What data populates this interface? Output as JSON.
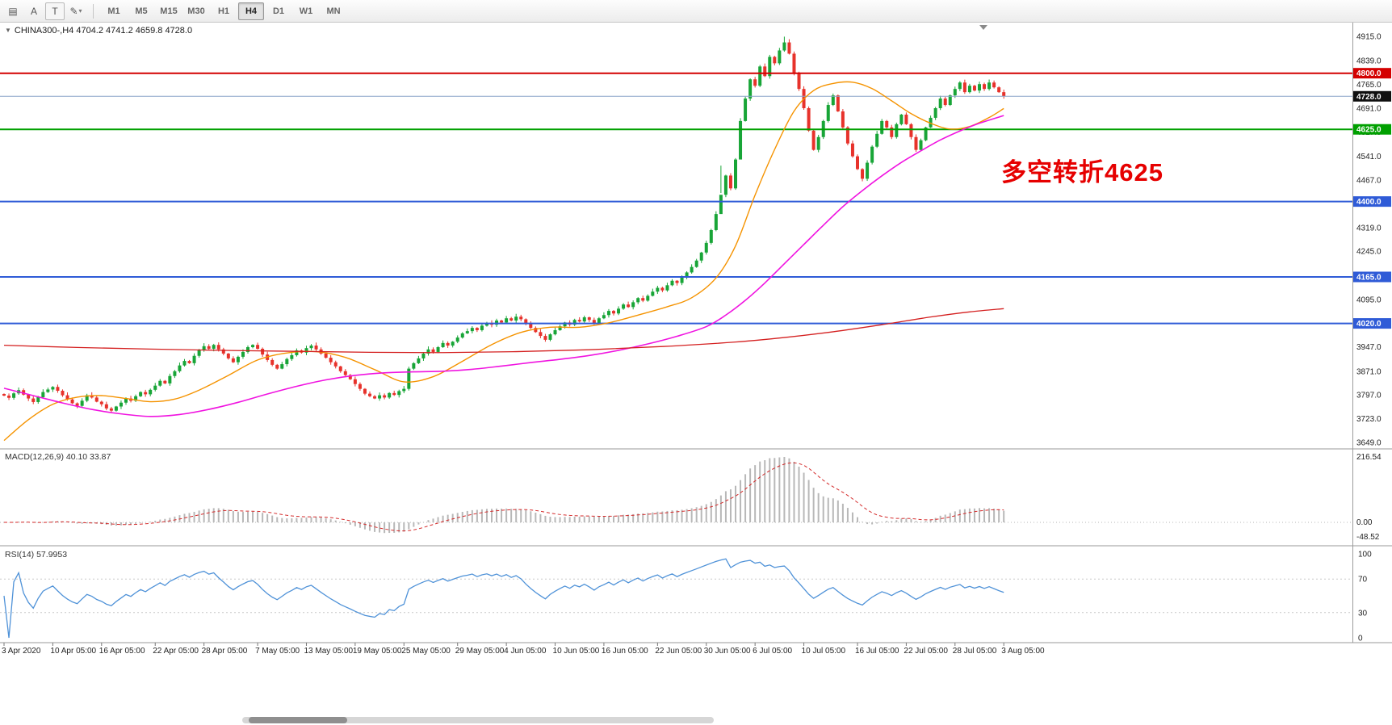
{
  "toolbar": {
    "icons": [
      {
        "name": "chart-grid-icon",
        "glyph": "▤",
        "boxed": false,
        "dropdown": false
      },
      {
        "name": "cursor-tool-icon",
        "glyph": "A",
        "boxed": false,
        "dropdown": false
      },
      {
        "name": "text-tool-icon",
        "glyph": "T",
        "boxed": true,
        "dropdown": false
      },
      {
        "name": "draw-tool-icon",
        "glyph": "✎",
        "boxed": false,
        "dropdown": true
      }
    ],
    "timeframes": [
      "M1",
      "M5",
      "M15",
      "M30",
      "H1",
      "H4",
      "D1",
      "W1",
      "MN"
    ],
    "selected_timeframe": "H4"
  },
  "chart": {
    "collapse_arrow": "▼",
    "symbol_title": "CHINA300-,H4  4704.2 4741.2 4659.8 4728.0",
    "annotation_text": "多空转折4625",
    "annotation_color": "#e60000"
  },
  "chart_data": {
    "type": "candlestick",
    "symbol": "CHINA300-",
    "timeframe": "H4",
    "ohlc_current": {
      "open": 4704.2,
      "high": 4741.2,
      "low": 4659.8,
      "close": 4728.0
    },
    "first_open": 3800,
    "closes": [
      3795,
      3788,
      3802,
      3812,
      3798,
      3786,
      3775,
      3790,
      3806,
      3814,
      3822,
      3810,
      3796,
      3783,
      3771,
      3763,
      3779,
      3796,
      3789,
      3776,
      3768,
      3755,
      3748,
      3761,
      3773,
      3786,
      3779,
      3793,
      3806,
      3799,
      3813,
      3826,
      3841,
      3833,
      3856,
      3871,
      3889,
      3903,
      3896,
      3919,
      3936,
      3949,
      3941,
      3953,
      3939,
      3926,
      3911,
      3899,
      3916,
      3931,
      3946,
      3953,
      3941,
      3923,
      3906,
      3891,
      3879,
      3893,
      3909,
      3921,
      3936,
      3929,
      3943,
      3951,
      3939,
      3926,
      3913,
      3899,
      3886,
      3871,
      3859,
      3846,
      3831,
      3816,
      3801,
      3793,
      3786,
      3796,
      3789,
      3803,
      3797,
      3809,
      3816,
      3879,
      3896,
      3911,
      3926,
      3939,
      3931,
      3946,
      3959,
      3951,
      3963,
      3976,
      3989,
      3996,
      4006,
      3999,
      4013,
      4021,
      4016,
      4029,
      4023,
      4036,
      4029,
      4041,
      4033,
      4019,
      4006,
      3993,
      3981,
      3969,
      3986,
      3999,
      4011,
      4023,
      4016,
      4031,
      4026,
      4039,
      4031,
      4021,
      4036,
      4046,
      4059,
      4051,
      4066,
      4079,
      4071,
      4086,
      4099,
      4091,
      4106,
      4119,
      4131,
      4123,
      4139,
      4153,
      4146,
      4163,
      4179,
      4196,
      4216,
      4241,
      4271,
      4311,
      4361,
      4421,
      4481,
      4441,
      4531,
      4651,
      4721,
      4781,
      4761,
      4821,
      4791,
      4851,
      4831,
      4871,
      4896,
      4861,
      4801,
      4751,
      4691,
      4621,
      4561,
      4601,
      4651,
      4701,
      4731,
      4681,
      4631,
      4581,
      4541,
      4501,
      4471,
      4521,
      4571,
      4611,
      4651,
      4631,
      4601,
      4641,
      4671,
      4641,
      4601,
      4561,
      4591,
      4631,
      4661,
      4691,
      4721,
      4701,
      4731,
      4751,
      4771,
      4741,
      4761,
      4746,
      4766,
      4751,
      4771,
      4756,
      4741,
      4728
    ],
    "high_low_overrides": {
      "147": {
        "low": 4512
      },
      "151": {
        "low": 4548
      },
      "160": {
        "high": 4914
      },
      "161": {
        "high": 4906
      }
    },
    "x_labels": [
      [
        0,
        "3 Apr 2020"
      ],
      [
        10,
        "10 Apr 05:00"
      ],
      [
        20,
        "16 Apr 05:00"
      ],
      [
        31,
        "22 Apr 05:00"
      ],
      [
        41,
        "28 Apr 05:00"
      ],
      [
        52,
        "7 May 05:00"
      ],
      [
        62,
        "13 May 05:00"
      ],
      [
        72,
        "19 May 05:00"
      ],
      [
        82,
        "25 May 05:00"
      ],
      [
        93,
        "29 May 05:00"
      ],
      [
        103,
        "4 Jun 05:00"
      ],
      [
        113,
        "10 Jun 05:00"
      ],
      [
        123,
        "16 Jun 05:00"
      ],
      [
        134,
        "22 Jun 05:00"
      ],
      [
        144,
        "30 Jun 05:00"
      ],
      [
        154,
        "6 Jul 05:00"
      ],
      [
        164,
        "10 Jul 05:00"
      ],
      [
        175,
        "16 Jul 05:00"
      ],
      [
        185,
        "22 Jul 05:00"
      ],
      [
        195,
        "28 Jul 05:00"
      ],
      [
        205,
        "3 Aug 05:00"
      ]
    ],
    "y_axis": {
      "min": 3649,
      "max": 4915,
      "labels": [
        "4915.0",
        "4839.0",
        "4765.0",
        "4691.0",
        "4617.0",
        "4541.0",
        "4467.0",
        "4393.0",
        "4319.0",
        "4245.0",
        "4171.0",
        "4095.0",
        "4021.0",
        "3947.0",
        "3871.0",
        "3797.0",
        "3723.0",
        "3649.0"
      ]
    },
    "levels": [
      {
        "price": 4800.0,
        "label": "4800.0",
        "color": "#d40000",
        "badge": "#d40000",
        "width": 2,
        "kind": "resistance"
      },
      {
        "price": 4728.0,
        "label": "4728.0",
        "color": "#8aa4c8",
        "badge": "#101010",
        "width": 1,
        "kind": "current-price"
      },
      {
        "price": 4625.0,
        "label": "4625.0",
        "color": "#00a000",
        "badge": "#00a000",
        "width": 2,
        "kind": "pivot"
      },
      {
        "price": 4400.0,
        "label": "4400.0",
        "color": "#2f5bd7",
        "badge": "#2f5bd7",
        "width": 2,
        "kind": "support"
      },
      {
        "price": 4165.0,
        "label": "4165.0",
        "color": "#2f5bd7",
        "badge": "#2f5bd7",
        "width": 2,
        "kind": "support"
      },
      {
        "price": 4020.0,
        "label": "4020.0",
        "color": "#2f5bd7",
        "badge": "#2f5bd7",
        "width": 2,
        "kind": "support"
      }
    ],
    "ma_lines": [
      {
        "name": "ma-fast",
        "color": "#f59300",
        "width": 1.4,
        "points": [
          [
            0,
            3655
          ],
          [
            5,
            3720
          ],
          [
            10,
            3768
          ],
          [
            15,
            3790
          ],
          [
            20,
            3795
          ],
          [
            25,
            3786
          ],
          [
            30,
            3776
          ],
          [
            35,
            3784
          ],
          [
            40,
            3812
          ],
          [
            46,
            3858
          ],
          [
            52,
            3906
          ],
          [
            58,
            3928
          ],
          [
            64,
            3932
          ],
          [
            70,
            3914
          ],
          [
            76,
            3876
          ],
          [
            82,
            3838
          ],
          [
            88,
            3854
          ],
          [
            94,
            3902
          ],
          [
            100,
            3954
          ],
          [
            106,
            3992
          ],
          [
            112,
            4008
          ],
          [
            118,
            4008
          ],
          [
            124,
            4022
          ],
          [
            130,
            4046
          ],
          [
            136,
            4072
          ],
          [
            141,
            4100
          ],
          [
            146,
            4162
          ],
          [
            150,
            4262
          ],
          [
            154,
            4420
          ],
          [
            158,
            4562
          ],
          [
            162,
            4682
          ],
          [
            166,
            4746
          ],
          [
            170,
            4768
          ],
          [
            174,
            4772
          ],
          [
            178,
            4752
          ],
          [
            182,
            4714
          ],
          [
            186,
            4674
          ],
          [
            190,
            4644
          ],
          [
            194,
            4626
          ],
          [
            198,
            4634
          ],
          [
            202,
            4662
          ],
          [
            205,
            4690
          ]
        ]
      },
      {
        "name": "ma-mid",
        "color": "#f014e0",
        "width": 1.6,
        "points": [
          [
            0,
            3818
          ],
          [
            6,
            3795
          ],
          [
            12,
            3772
          ],
          [
            18,
            3752
          ],
          [
            24,
            3738
          ],
          [
            30,
            3730
          ],
          [
            36,
            3736
          ],
          [
            42,
            3752
          ],
          [
            48,
            3774
          ],
          [
            54,
            3800
          ],
          [
            60,
            3824
          ],
          [
            66,
            3844
          ],
          [
            72,
            3858
          ],
          [
            78,
            3866
          ],
          [
            84,
            3869
          ],
          [
            90,
            3871
          ],
          [
            96,
            3877
          ],
          [
            102,
            3887
          ],
          [
            108,
            3898
          ],
          [
            114,
            3908
          ],
          [
            120,
            3920
          ],
          [
            126,
            3936
          ],
          [
            132,
            3956
          ],
          [
            138,
            3980
          ],
          [
            144,
            4010
          ],
          [
            148,
            4046
          ],
          [
            152,
            4092
          ],
          [
            156,
            4146
          ],
          [
            160,
            4206
          ],
          [
            164,
            4266
          ],
          [
            168,
            4326
          ],
          [
            172,
            4384
          ],
          [
            176,
            4434
          ],
          [
            180,
            4480
          ],
          [
            184,
            4522
          ],
          [
            188,
            4558
          ],
          [
            192,
            4592
          ],
          [
            196,
            4620
          ],
          [
            200,
            4644
          ],
          [
            205,
            4668
          ]
        ]
      },
      {
        "name": "ma-slow",
        "color": "#d42020",
        "width": 1.3,
        "points": [
          [
            0,
            3952
          ],
          [
            15,
            3945
          ],
          [
            30,
            3940
          ],
          [
            45,
            3936
          ],
          [
            60,
            3933
          ],
          [
            75,
            3930
          ],
          [
            90,
            3929
          ],
          [
            105,
            3932
          ],
          [
            120,
            3938
          ],
          [
            135,
            3948
          ],
          [
            150,
            3962
          ],
          [
            160,
            3976
          ],
          [
            170,
            3994
          ],
          [
            180,
            4016
          ],
          [
            190,
            4040
          ],
          [
            198,
            4056
          ],
          [
            205,
            4066
          ]
        ]
      }
    ],
    "macd": {
      "title": "MACD(12,26,9) 40.10 33.87",
      "params": [
        12,
        26,
        9
      ],
      "main_value": 40.1,
      "signal_value": 33.87,
      "axis_labels": [
        "216.54",
        "0.00",
        "-48.52"
      ],
      "max": 216.54,
      "min": -48.52
    },
    "rsi": {
      "title": "RSI(14) 57.9953",
      "period": 14,
      "value": 57.9953,
      "axis_labels": [
        "100",
        "70",
        "30",
        "0"
      ],
      "levels": [
        70,
        30
      ]
    }
  }
}
